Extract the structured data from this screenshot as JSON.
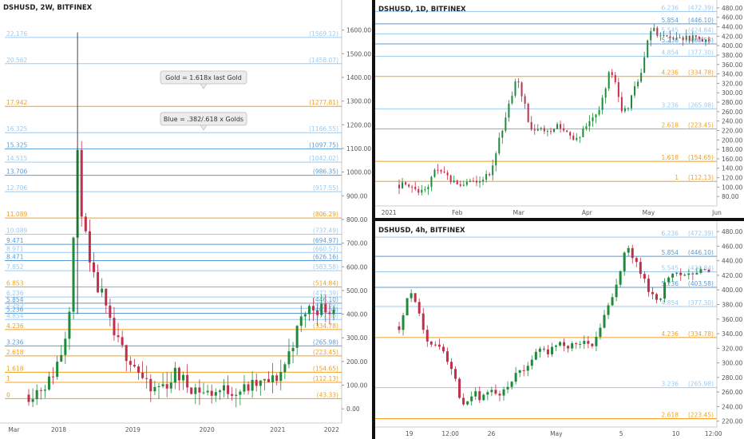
{
  "colors": {
    "gold": "#f0a020",
    "blue": "#5b9bd5",
    "blue_light": "#9ccaf0",
    "up": "#1f8b3a",
    "down": "#c0304a",
    "grid_axis_text": "#555555"
  },
  "chart_data": [
    {
      "id": "panel_2w",
      "type": "candlestick",
      "title": "DSHUSD, 2W, BITFINEX",
      "ylim": [
        -60,
        1700
      ],
      "y_ticks": [
        "0.00",
        "100.00",
        "200.00",
        "300.00",
        "400.00",
        "500.00",
        "600.00",
        "700.00",
        "800.00",
        "900.00",
        "1000.00",
        "1100.00",
        "1200.00",
        "1300.00",
        "1400.00",
        "1500.00",
        "1600.00"
      ],
      "x_ticks": [
        {
          "label": "Mar",
          "x": 0.027
        },
        {
          "label": "2018",
          "x": 0.16
        },
        {
          "label": "2019",
          "x": 0.38
        },
        {
          "label": "2020",
          "x": 0.6
        },
        {
          "label": "2021",
          "x": 0.81
        },
        {
          "label": "2022",
          "x": 0.97
        }
      ],
      "fib_levels": [
        {
          "ratio": "22.176",
          "price": "(1569.12)",
          "value": 1569.12,
          "color": "blue_light"
        },
        {
          "ratio": "20.562",
          "price": "(1458.07)",
          "value": 1458.07,
          "color": "blue_light"
        },
        {
          "ratio": "17.942",
          "price": "(1277.81)",
          "value": 1277.81,
          "color": "gold"
        },
        {
          "ratio": "16.325",
          "price": "(1166.55)",
          "value": 1166.55,
          "color": "blue_light"
        },
        {
          "ratio": "15.325",
          "price": "(1097.75)",
          "value": 1097.75,
          "color": "blue"
        },
        {
          "ratio": "14.515",
          "price": "(1042.02)",
          "value": 1042.02,
          "color": "blue_light"
        },
        {
          "ratio": "13.706",
          "price": "(986.35)",
          "value": 986.35,
          "color": "blue"
        },
        {
          "ratio": "12.706",
          "price": "(917.55)",
          "value": 917.55,
          "color": "blue_light"
        },
        {
          "ratio": "11.089",
          "price": "(806.29)",
          "value": 806.29,
          "color": "gold"
        },
        {
          "ratio": "10.089",
          "price": "(737.49)",
          "value": 737.49,
          "color": "blue_light"
        },
        {
          "ratio": "9.471",
          "price": "(694.97)",
          "value": 694.97,
          "color": "blue"
        },
        {
          "ratio": "8.971",
          "price": "(660.57)",
          "value": 660.57,
          "color": "blue_light"
        },
        {
          "ratio": "8.471",
          "price": "(626.16)",
          "value": 626.16,
          "color": "blue"
        },
        {
          "ratio": "7.852",
          "price": "(583.58)",
          "value": 583.58,
          "color": "blue_light"
        },
        {
          "ratio": "6.853",
          "price": "(514.84)",
          "value": 514.84,
          "color": "gold"
        },
        {
          "ratio": "6.236",
          "price": "(472.39)",
          "value": 472.39,
          "color": "blue_light"
        },
        {
          "ratio": "5.854",
          "price": "(446.10)",
          "value": 446.1,
          "color": "blue"
        },
        {
          "ratio": "5.545",
          "price": "(424.84)",
          "value": 424.84,
          "color": "blue_light"
        },
        {
          "ratio": "5.236",
          "price": "(403.58)",
          "value": 403.58,
          "color": "blue"
        },
        {
          "ratio": "4.854",
          "price": "(377.30)",
          "value": 377.3,
          "color": "blue_light"
        },
        {
          "ratio": "4.236",
          "price": "(334.78)",
          "value": 334.78,
          "color": "gold"
        },
        {
          "ratio": "3.236",
          "price": "(265.98)",
          "value": 265.98,
          "color": "blue"
        },
        {
          "ratio": "2.618",
          "price": "(223.45)",
          "value": 223.45,
          "color": "gold"
        },
        {
          "ratio": "1.618",
          "price": "(154.65)",
          "value": 154.65,
          "color": "gold"
        },
        {
          "ratio": "1",
          "price": "(112.13)",
          "value": 112.13,
          "color": "gold"
        },
        {
          "ratio": "0",
          "price": "(43.33)",
          "value": 43.33,
          "color": "gold"
        }
      ],
      "annotations": [
        {
          "text": "Gold = 1.618x last Gold",
          "x": 0.59,
          "y": 1400
        },
        {
          "text": "Blue = .382/.618 x Golds",
          "x": 0.59,
          "y": 1225
        }
      ],
      "price_path": [
        {
          "x": 0.0,
          "close": 60
        },
        {
          "x": 0.03,
          "close": 80
        },
        {
          "x": 0.07,
          "close": 120
        },
        {
          "x": 0.11,
          "close": 250
        },
        {
          "x": 0.13,
          "close": 380
        },
        {
          "x": 0.145,
          "close": 650
        },
        {
          "x": 0.155,
          "close": 1080
        },
        {
          "x": 0.165,
          "close": 1050
        },
        {
          "x": 0.175,
          "close": 800
        },
        {
          "x": 0.19,
          "close": 700
        },
        {
          "x": 0.2,
          "close": 600
        },
        {
          "x": 0.22,
          "close": 520
        },
        {
          "x": 0.24,
          "close": 480
        },
        {
          "x": 0.26,
          "close": 380
        },
        {
          "x": 0.28,
          "close": 310
        },
        {
          "x": 0.3,
          "close": 260
        },
        {
          "x": 0.32,
          "close": 230
        },
        {
          "x": 0.34,
          "close": 200
        },
        {
          "x": 0.36,
          "close": 160
        },
        {
          "x": 0.38,
          "close": 110
        },
        {
          "x": 0.4,
          "close": 70
        },
        {
          "x": 0.42,
          "close": 90
        },
        {
          "x": 0.44,
          "close": 100
        },
        {
          "x": 0.46,
          "close": 110
        },
        {
          "x": 0.48,
          "close": 150
        },
        {
          "x": 0.5,
          "close": 130
        },
        {
          "x": 0.52,
          "close": 100
        },
        {
          "x": 0.54,
          "close": 90
        },
        {
          "x": 0.56,
          "close": 80
        },
        {
          "x": 0.58,
          "close": 65
        },
        {
          "x": 0.6,
          "close": 70
        },
        {
          "x": 0.62,
          "close": 75
        },
        {
          "x": 0.64,
          "close": 80
        },
        {
          "x": 0.66,
          "close": 80
        },
        {
          "x": 0.68,
          "close": 78
        },
        {
          "x": 0.7,
          "close": 80
        },
        {
          "x": 0.72,
          "close": 90
        },
        {
          "x": 0.74,
          "close": 100
        },
        {
          "x": 0.76,
          "close": 105
        },
        {
          "x": 0.78,
          "close": 110
        },
        {
          "x": 0.8,
          "close": 120
        },
        {
          "x": 0.82,
          "close": 140
        },
        {
          "x": 0.84,
          "close": 190
        },
        {
          "x": 0.86,
          "close": 260
        },
        {
          "x": 0.88,
          "close": 330
        },
        {
          "x": 0.9,
          "close": 400
        },
        {
          "x": 0.92,
          "close": 425
        }
      ]
    },
    {
      "id": "panel_1d",
      "type": "candlestick",
      "title": "DSHUSD, 1D, BITFINEX",
      "ylim": [
        60,
        490
      ],
      "y_ticks": [
        "80.00",
        "100.00",
        "120.00",
        "140.00",
        "160.00",
        "180.00",
        "200.00",
        "220.00",
        "240.00",
        "260.00",
        "280.00",
        "300.00",
        "320.00",
        "340.00",
        "360.00",
        "380.00",
        "400.00",
        "420.00",
        "440.00",
        "460.00",
        "480.00"
      ],
      "x_ticks": [
        {
          "label": "2021",
          "x": 0.04
        },
        {
          "label": "Feb",
          "x": 0.24
        },
        {
          "label": "Mar",
          "x": 0.42
        },
        {
          "label": "Apr",
          "x": 0.62
        },
        {
          "label": "May",
          "x": 0.8
        },
        {
          "label": "Jun",
          "x": 1.0
        }
      ],
      "fib_levels": [
        {
          "ratio": "6.236",
          "price": "(472.39)",
          "value": 472.39,
          "color": "blue_light"
        },
        {
          "ratio": "5.854",
          "price": "(446.10)",
          "value": 446.1,
          "color": "blue"
        },
        {
          "ratio": "5.545",
          "price": "(424.84)",
          "value": 424.84,
          "color": "blue_light"
        },
        {
          "ratio": "5.236",
          "price": "(403.58)",
          "value": 403.58,
          "color": "blue"
        },
        {
          "ratio": "4.854",
          "price": "(377.30)",
          "value": 377.3,
          "color": "blue_light"
        },
        {
          "ratio": "4.236",
          "price": "(334.78)",
          "value": 334.78,
          "color": "gold"
        },
        {
          "ratio": "3.236",
          "price": "(265.98)",
          "value": 265.98,
          "color": "blue_light"
        },
        {
          "ratio": "2.618",
          "price": "(223.45)",
          "value": 223.45,
          "color": "gold"
        },
        {
          "ratio": "1.618",
          "price": "(154.65)",
          "value": 154.65,
          "color": "gold"
        },
        {
          "ratio": "1",
          "price": "(112.13)",
          "value": 112.13,
          "color": "gold"
        }
      ],
      "annotations": [],
      "price_path": [
        {
          "x": 0.0,
          "close": 105
        },
        {
          "x": 0.03,
          "close": 100
        },
        {
          "x": 0.06,
          "close": 92
        },
        {
          "x": 0.09,
          "close": 100
        },
        {
          "x": 0.12,
          "close": 140
        },
        {
          "x": 0.15,
          "close": 125
        },
        {
          "x": 0.18,
          "close": 110
        },
        {
          "x": 0.21,
          "close": 105
        },
        {
          "x": 0.24,
          "close": 110
        },
        {
          "x": 0.27,
          "close": 120
        },
        {
          "x": 0.3,
          "close": 135
        },
        {
          "x": 0.32,
          "close": 190
        },
        {
          "x": 0.34,
          "close": 240
        },
        {
          "x": 0.36,
          "close": 290
        },
        {
          "x": 0.38,
          "close": 330
        },
        {
          "x": 0.4,
          "close": 290
        },
        {
          "x": 0.42,
          "close": 230
        },
        {
          "x": 0.44,
          "close": 215
        },
        {
          "x": 0.46,
          "close": 225
        },
        {
          "x": 0.48,
          "close": 215
        },
        {
          "x": 0.5,
          "close": 225
        },
        {
          "x": 0.52,
          "close": 230
        },
        {
          "x": 0.54,
          "close": 215
        },
        {
          "x": 0.56,
          "close": 200
        },
        {
          "x": 0.58,
          "close": 210
        },
        {
          "x": 0.6,
          "close": 225
        },
        {
          "x": 0.62,
          "close": 235
        },
        {
          "x": 0.64,
          "close": 260
        },
        {
          "x": 0.66,
          "close": 290
        },
        {
          "x": 0.68,
          "close": 360
        },
        {
          "x": 0.7,
          "close": 310
        },
        {
          "x": 0.72,
          "close": 265
        },
        {
          "x": 0.74,
          "close": 275
        },
        {
          "x": 0.76,
          "close": 310
        },
        {
          "x": 0.78,
          "close": 345
        },
        {
          "x": 0.8,
          "close": 400
        },
        {
          "x": 0.82,
          "close": 445
        },
        {
          "x": 0.83,
          "close": 420
        },
        {
          "x": 0.85,
          "close": 415
        }
      ]
    },
    {
      "id": "panel_4h",
      "type": "candlestick",
      "title": "DSHUSD, 4h, BITFINEX",
      "ylim": [
        212,
        490
      ],
      "y_ticks": [
        "220.00",
        "240.00",
        "260.00",
        "280.00",
        "300.00",
        "320.00",
        "340.00",
        "360.00",
        "380.00",
        "400.00",
        "420.00",
        "440.00",
        "460.00",
        "480.00"
      ],
      "x_ticks": [
        {
          "label": "19",
          "x": 0.1
        },
        {
          "label": "12:00",
          "x": 0.22
        },
        {
          "label": "26",
          "x": 0.34
        },
        {
          "label": "May",
          "x": 0.53
        },
        {
          "label": "5",
          "x": 0.72
        },
        {
          "label": "10",
          "x": 0.88
        },
        {
          "label": "12:00",
          "x": 0.99
        }
      ],
      "fib_levels": [
        {
          "ratio": "6.236",
          "price": "(472.39)",
          "value": 472.39,
          "color": "blue_light"
        },
        {
          "ratio": "5.854",
          "price": "(446.10)",
          "value": 446.1,
          "color": "blue"
        },
        {
          "ratio": "5.545",
          "price": "(424.84)",
          "value": 424.84,
          "color": "blue_light"
        },
        {
          "ratio": "5.236",
          "price": "(403.58)",
          "value": 403.58,
          "color": "blue"
        },
        {
          "ratio": "4.854",
          "price": "(377.30)",
          "value": 377.3,
          "color": "blue_light"
        },
        {
          "ratio": "4.236",
          "price": "(334.78)",
          "value": 334.78,
          "color": "gold"
        },
        {
          "ratio": "3.236",
          "price": "(265.98)",
          "value": 265.98,
          "color": "blue_light"
        },
        {
          "ratio": "2.618",
          "price": "(223.45)",
          "value": 223.45,
          "color": "gold"
        }
      ],
      "annotations": [],
      "price_path": [
        {
          "x": 0.0,
          "close": 350
        },
        {
          "x": 0.02,
          "close": 380
        },
        {
          "x": 0.04,
          "close": 400
        },
        {
          "x": 0.06,
          "close": 380
        },
        {
          "x": 0.08,
          "close": 340
        },
        {
          "x": 0.1,
          "close": 320
        },
        {
          "x": 0.12,
          "close": 325
        },
        {
          "x": 0.14,
          "close": 315
        },
        {
          "x": 0.16,
          "close": 300
        },
        {
          "x": 0.18,
          "close": 280
        },
        {
          "x": 0.2,
          "close": 245
        },
        {
          "x": 0.22,
          "close": 250
        },
        {
          "x": 0.24,
          "close": 260
        },
        {
          "x": 0.26,
          "close": 250
        },
        {
          "x": 0.28,
          "close": 255
        },
        {
          "x": 0.3,
          "close": 265
        },
        {
          "x": 0.32,
          "close": 255
        },
        {
          "x": 0.34,
          "close": 260
        },
        {
          "x": 0.36,
          "close": 275
        },
        {
          "x": 0.38,
          "close": 285
        },
        {
          "x": 0.4,
          "close": 290
        },
        {
          "x": 0.42,
          "close": 300
        },
        {
          "x": 0.44,
          "close": 310
        },
        {
          "x": 0.46,
          "close": 320
        },
        {
          "x": 0.48,
          "close": 315
        },
        {
          "x": 0.5,
          "close": 320
        },
        {
          "x": 0.52,
          "close": 330
        },
        {
          "x": 0.54,
          "close": 320
        },
        {
          "x": 0.56,
          "close": 325
        },
        {
          "x": 0.58,
          "close": 320
        },
        {
          "x": 0.6,
          "close": 330
        },
        {
          "x": 0.62,
          "close": 325
        },
        {
          "x": 0.64,
          "close": 340
        },
        {
          "x": 0.66,
          "close": 360
        },
        {
          "x": 0.68,
          "close": 385
        },
        {
          "x": 0.7,
          "close": 400
        },
        {
          "x": 0.72,
          "close": 440
        },
        {
          "x": 0.74,
          "close": 460
        },
        {
          "x": 0.76,
          "close": 440
        },
        {
          "x": 0.78,
          "close": 420
        },
        {
          "x": 0.8,
          "close": 405
        },
        {
          "x": 0.82,
          "close": 390
        },
        {
          "x": 0.84,
          "close": 385
        },
        {
          "x": 0.86,
          "close": 410
        },
        {
          "x": 0.88,
          "close": 425
        }
      ]
    }
  ]
}
